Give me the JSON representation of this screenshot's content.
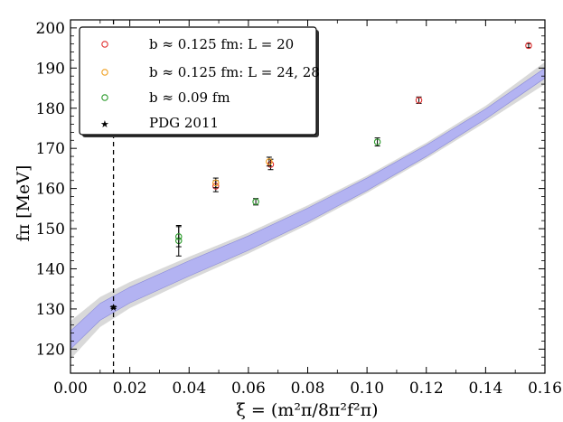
{
  "chart_data": {
    "type": "scatter",
    "xlabel": "ξ = (m²π/8π²f²π)",
    "ylabel": "fπ [MeV]",
    "xlim": [
      0.0,
      0.16
    ],
    "ylim": [
      114,
      202
    ],
    "x_ticks": [
      0.0,
      0.02,
      0.04,
      0.06,
      0.08,
      0.1,
      0.12,
      0.14,
      0.16
    ],
    "x_tick_labels": [
      "0.00",
      "0.02",
      "0.04",
      "0.06",
      "0.08",
      "0.10",
      "0.12",
      "0.14",
      "0.16"
    ],
    "y_ticks": [
      120,
      130,
      140,
      150,
      160,
      170,
      180,
      190,
      200
    ],
    "y_tick_labels": [
      "120",
      "130",
      "140",
      "150",
      "160",
      "170",
      "180",
      "190",
      "200"
    ],
    "legend": [
      {
        "label": "b ≈ 0.125 fm: L = 20",
        "color": "#e03030",
        "marker": "circle"
      },
      {
        "label": "b ≈ 0.125 fm: L = 24, 28",
        "color": "#f0a020",
        "marker": "circle"
      },
      {
        "label": "b ≈ 0.09  fm",
        "color": "#2a9a2a",
        "marker": "circle"
      },
      {
        "label": "PDG 2011",
        "color": "#000000",
        "marker": "star"
      }
    ],
    "series": [
      {
        "name": "b ≈ 0.125 fm: L = 20",
        "color": "#e03030",
        "points": [
          {
            "x": 0.049,
            "y": 160.6,
            "err": 1.4
          },
          {
            "x": 0.0675,
            "y": 166.0,
            "err": 1.3
          },
          {
            "x": 0.1175,
            "y": 182.0,
            "err": 0.8
          },
          {
            "x": 0.1545,
            "y": 195.6,
            "err": 0.5
          }
        ]
      },
      {
        "name": "b ≈ 0.125 fm: L = 24, 28",
        "color": "#f0a020",
        "points": [
          {
            "x": 0.049,
            "y": 161.4,
            "err": 1.2
          },
          {
            "x": 0.067,
            "y": 166.7,
            "err": 1.1
          }
        ]
      },
      {
        "name": "b ≈ 0.09  fm",
        "color": "#2a9a2a",
        "points": [
          {
            "x": 0.0365,
            "y": 147.0,
            "err": 3.8
          },
          {
            "x": 0.0365,
            "y": 148.0,
            "err": 2.5
          },
          {
            "x": 0.0625,
            "y": 156.7,
            "err": 0.8
          },
          {
            "x": 0.1035,
            "y": 171.6,
            "err": 1.0
          }
        ]
      },
      {
        "name": "PDG 2011",
        "color": "#000000",
        "points": [
          {
            "x": 0.0145,
            "y": 130.4,
            "err": 0.3
          }
        ]
      }
    ],
    "vertical_line": {
      "x": 0.0145,
      "style": "dashed"
    },
    "band": {
      "x": [
        0.0,
        0.01,
        0.02,
        0.04,
        0.06,
        0.08,
        0.1,
        0.12,
        0.14,
        0.16
      ],
      "lower": [
        120.0,
        127.2,
        131.5,
        138.2,
        144.6,
        151.7,
        159.5,
        168.0,
        177.3,
        187.5
      ],
      "upper": [
        124.5,
        131.4,
        135.4,
        142.0,
        148.2,
        155.1,
        162.6,
        170.8,
        179.8,
        190.0
      ],
      "outer_lower": [
        117.5,
        125.5,
        130.2,
        137.2,
        143.8,
        151.0,
        158.9,
        167.4,
        176.5,
        186.0
      ],
      "outer_upper": [
        127.0,
        133.0,
        136.7,
        143.0,
        149.0,
        155.8,
        163.2,
        171.4,
        180.6,
        191.5
      ],
      "inner_color": "#b3b3f2",
      "outer_color": "#d9d9d9"
    }
  }
}
